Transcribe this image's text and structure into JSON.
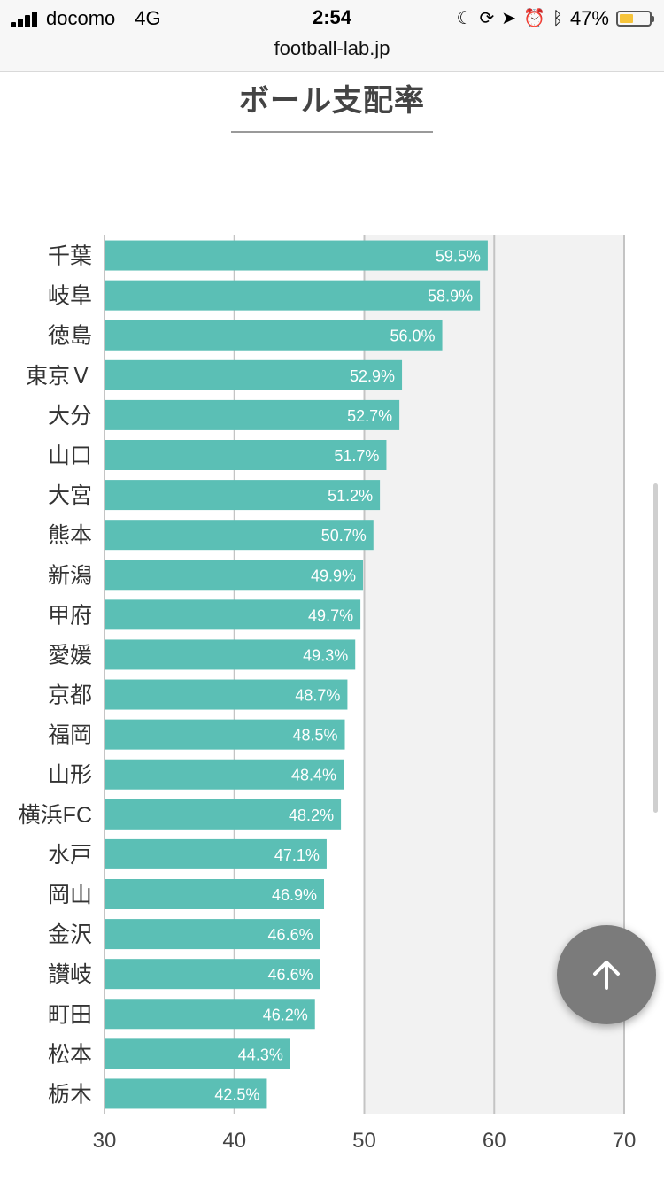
{
  "status_bar": {
    "carrier": "docomo",
    "network": "4G",
    "time": "2:54",
    "battery": "47%",
    "battery_level": 0.47
  },
  "browser": {
    "url": "football-lab.jp"
  },
  "page": {
    "title": "ボール支配率"
  },
  "chart_data": {
    "type": "bar",
    "orientation": "horizontal",
    "title": "ボール支配率",
    "categories": [
      "千葉",
      "岐阜",
      "徳島",
      "東京Ｖ",
      "大分",
      "山口",
      "大宮",
      "熊本",
      "新潟",
      "甲府",
      "愛媛",
      "京都",
      "福岡",
      "山形",
      "横浜FC",
      "水戸",
      "岡山",
      "金沢",
      "讃岐",
      "町田",
      "松本",
      "栃木"
    ],
    "values": [
      59.5,
      58.9,
      56.0,
      52.9,
      52.7,
      51.7,
      51.2,
      50.7,
      49.9,
      49.7,
      49.3,
      48.7,
      48.5,
      48.4,
      48.2,
      47.1,
      46.9,
      46.6,
      46.6,
      46.2,
      44.3,
      42.5
    ],
    "value_labels": [
      "59.5%",
      "58.9%",
      "56.0%",
      "52.9%",
      "52.7%",
      "51.7%",
      "51.2%",
      "50.7%",
      "49.9%",
      "49.7%",
      "49.3%",
      "48.7%",
      "48.5%",
      "48.4%",
      "48.2%",
      "47.1%",
      "46.9%",
      "46.6%",
      "46.6%",
      "46.2%",
      "44.3%",
      "42.5%"
    ],
    "xlim": [
      30,
      70
    ],
    "xticks": [
      30,
      40,
      50,
      60,
      70
    ],
    "grid": true,
    "colors": {
      "bar": "#5bbfb5",
      "shaded_band": "#f2f2f2",
      "grid": "#c4c4c4",
      "value_label": "#ffffff"
    }
  },
  "controls": {
    "scroll_top_icon": "arrow-up-icon"
  }
}
